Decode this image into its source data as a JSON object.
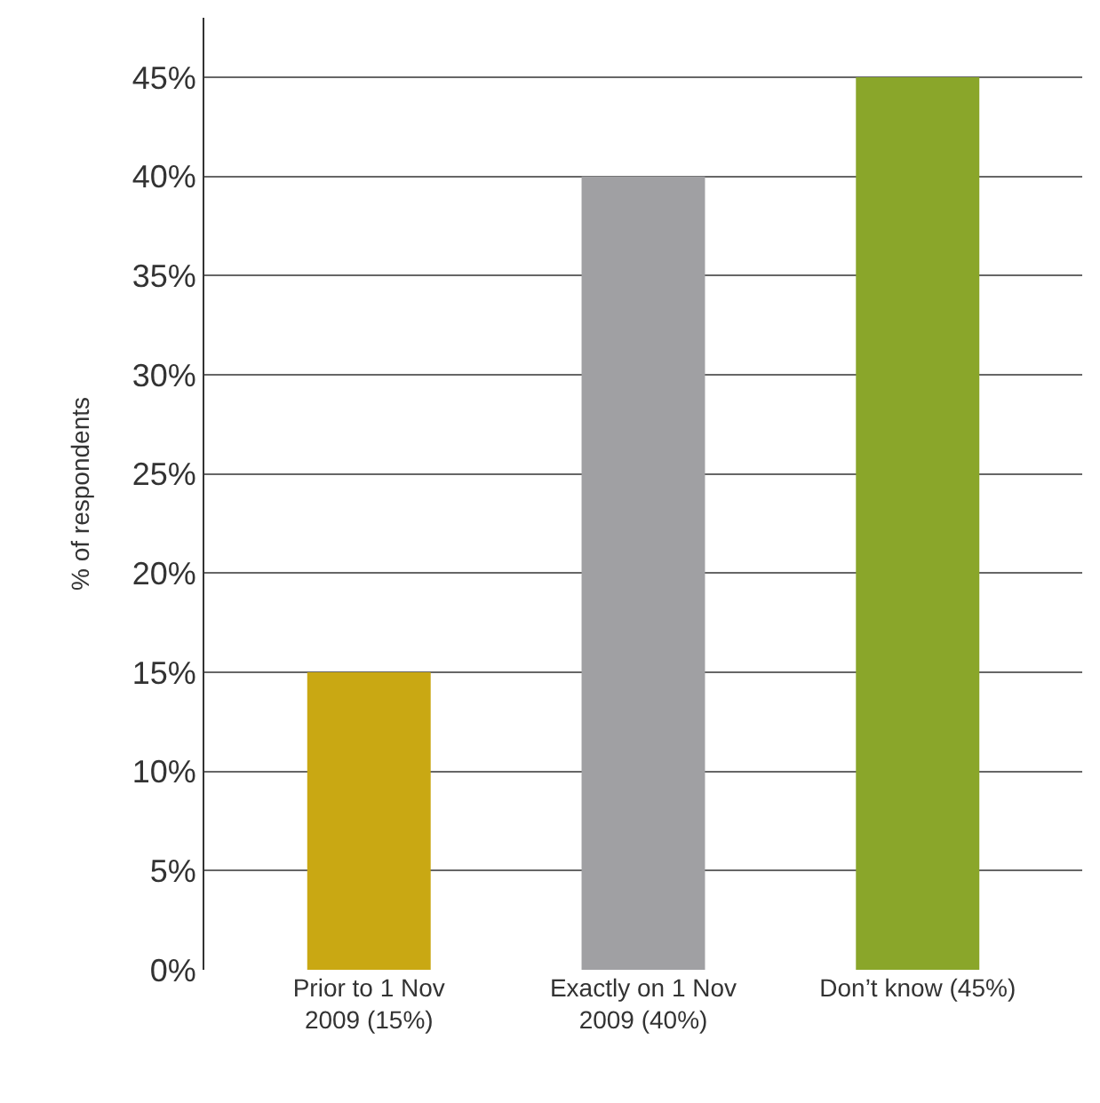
{
  "chart_data": {
    "type": "bar",
    "ylabel": "% of respondents",
    "categories": [
      "Prior to 1 Nov\n2009 (15%)",
      "Exactly on 1 Nov\n2009 (40%)",
      "Don’t know (45%)"
    ],
    "values": [
      15,
      40,
      45
    ],
    "colors": [
      "#c9a813",
      "#a0a0a3",
      "#8aa62a"
    ],
    "ylim": [
      0,
      48
    ],
    "yticks": [
      {
        "value": 0,
        "label": "0%"
      },
      {
        "value": 5,
        "label": "5%"
      },
      {
        "value": 10,
        "label": "10%"
      },
      {
        "value": 15,
        "label": "15%"
      },
      {
        "value": 20,
        "label": "20%"
      },
      {
        "value": 25,
        "label": "25%"
      },
      {
        "value": 30,
        "label": "30%"
      },
      {
        "value": 35,
        "label": "35%"
      },
      {
        "value": 40,
        "label": "40%"
      },
      {
        "value": 45,
        "label": "45%"
      }
    ],
    "grid": "y"
  }
}
